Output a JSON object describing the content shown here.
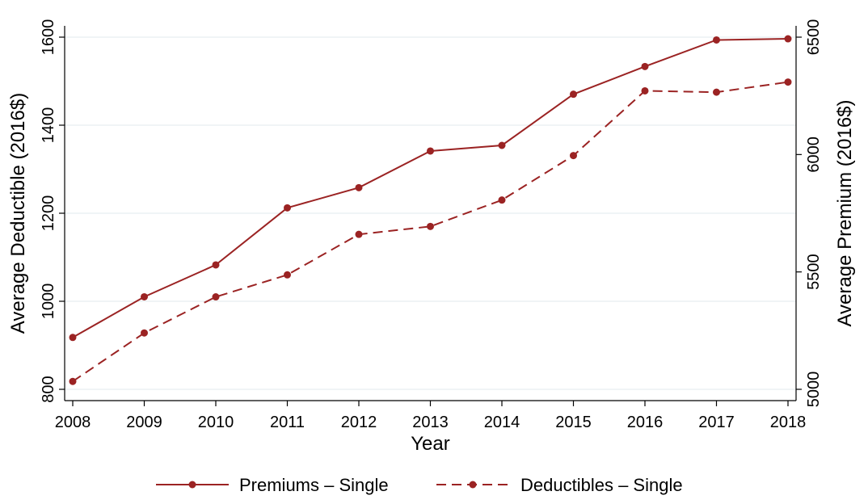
{
  "chart_data": {
    "type": "line",
    "title": "",
    "xlabel": "Year",
    "ylabel_left": "Average Deductible (2016$)",
    "ylabel_right": "Average Premium (2016$)",
    "x": [
      2008,
      2009,
      2010,
      2011,
      2012,
      2013,
      2014,
      2015,
      2016,
      2017,
      2018
    ],
    "x_ticks": [
      "2008",
      "2009",
      "2010",
      "2011",
      "2012",
      "2013",
      "2014",
      "2015",
      "2016",
      "2017",
      "2018"
    ],
    "xlim": [
      2008,
      2018
    ],
    "ylim_left": [
      800,
      1600
    ],
    "ylim_right": [
      5000,
      6500
    ],
    "y_ticks_left": [
      "800",
      "1000",
      "1200",
      "1400",
      "1600"
    ],
    "y_ticks_right": [
      "5000",
      "5500",
      "6000",
      "6500"
    ],
    "grid": true,
    "legend_position": "bottom",
    "series": [
      {
        "name": "Premiums – Single",
        "axis": "right",
        "style": "solid",
        "values": [
          5221,
          5394,
          5530,
          5773,
          5859,
          6015,
          6039,
          6257,
          6375,
          6488,
          6493
        ]
      },
      {
        "name": "Deductibles – Single",
        "axis": "left",
        "style": "dashed",
        "values": [
          818,
          928,
          1010,
          1060,
          1152,
          1170,
          1230,
          1331,
          1478,
          1475,
          1498
        ]
      }
    ],
    "colors": {
      "series": "#9b2323",
      "grid": "#e8eef0",
      "axis": "#000000"
    }
  }
}
